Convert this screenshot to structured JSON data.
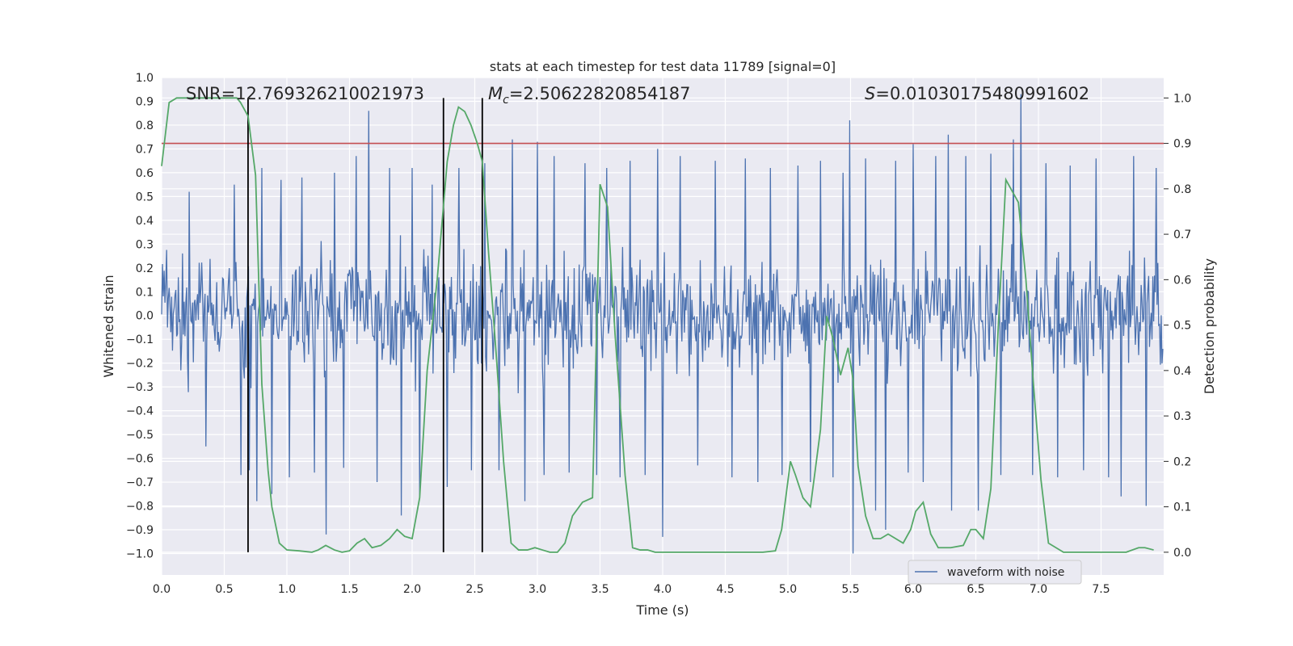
{
  "chart_data": {
    "type": "line",
    "title": "stats at each timestep for test data 11789 [signal=0]",
    "xlabel": "Time (s)",
    "ylabel_left": "Whitened strain",
    "ylabel_right": "Detection probability",
    "xlim": [
      0.0,
      8.0
    ],
    "ylim_left": [
      -1.09,
      1.0
    ],
    "ylim_right": [
      -0.05,
      1.045
    ],
    "x_ticks": [
      "0.0",
      "0.5",
      "1.0",
      "1.5",
      "2.0",
      "2.5",
      "3.0",
      "3.5",
      "4.0",
      "4.5",
      "5.0",
      "5.5",
      "6.0",
      "6.5",
      "7.0",
      "7.5"
    ],
    "y_left_ticks": [
      "1.0",
      "0.9",
      "0.8",
      "0.7",
      "0.6",
      "0.5",
      "0.4",
      "0.3",
      "0.2",
      "0.1",
      "0.0",
      "−0.1",
      "−0.2",
      "−0.3",
      "−0.4",
      "−0.5",
      "−0.6",
      "−0.7",
      "−0.8",
      "−0.9",
      "−1.0"
    ],
    "y_right_ticks": [
      "1.0",
      "0.9",
      "0.8",
      "0.7",
      "0.6",
      "0.5",
      "0.4",
      "0.3",
      "0.2",
      "0.1",
      "0.0"
    ],
    "grid": true,
    "annotations": {
      "snr": "SNR=12.769326210021973",
      "mc_symbol": "M",
      "mc_sub": "c",
      "mc_value": "=2.50622820854187",
      "s_symbol": "S",
      "s_value": "=0.01030175480991602"
    },
    "threshold": 0.9,
    "vertical_markers": [
      0.69,
      2.25,
      2.56
    ],
    "legend": {
      "label": "waveform with noise",
      "position": "lower-right"
    },
    "series": [
      {
        "name": "waveform with noise",
        "axis": "left",
        "color": "#4c72b0",
        "style": "noise",
        "sample_count": 1200,
        "seed": 11789,
        "core_amplitude": 0.29,
        "spikes": [
          {
            "x": 0.22,
            "y": 0.52
          },
          {
            "x": 0.35,
            "y": -0.55
          },
          {
            "x": 0.58,
            "y": 0.55
          },
          {
            "x": 0.63,
            "y": -0.67
          },
          {
            "x": 0.7,
            "y": -0.65
          },
          {
            "x": 0.76,
            "y": -0.78
          },
          {
            "x": 0.8,
            "y": 0.62
          },
          {
            "x": 0.88,
            "y": -0.75
          },
          {
            "x": 0.95,
            "y": 0.57
          },
          {
            "x": 1.02,
            "y": -0.68
          },
          {
            "x": 1.12,
            "y": 0.58
          },
          {
            "x": 1.22,
            "y": -0.66
          },
          {
            "x": 1.31,
            "y": -0.92
          },
          {
            "x": 1.38,
            "y": 0.6
          },
          {
            "x": 1.45,
            "y": -0.64
          },
          {
            "x": 1.55,
            "y": 0.67
          },
          {
            "x": 1.65,
            "y": 0.86
          },
          {
            "x": 1.72,
            "y": -0.7
          },
          {
            "x": 1.82,
            "y": 0.62
          },
          {
            "x": 1.91,
            "y": -0.84
          },
          {
            "x": 2.0,
            "y": 0.62
          },
          {
            "x": 2.06,
            "y": -0.77
          },
          {
            "x": 2.16,
            "y": 0.55
          },
          {
            "x": 2.28,
            "y": -0.72
          },
          {
            "x": 2.37,
            "y": 0.62
          },
          {
            "x": 2.47,
            "y": -0.65
          },
          {
            "x": 2.58,
            "y": 0.64
          },
          {
            "x": 2.69,
            "y": -0.65
          },
          {
            "x": 2.8,
            "y": 0.74
          },
          {
            "x": 2.9,
            "y": -0.78
          },
          {
            "x": 3.0,
            "y": 0.73
          },
          {
            "x": 3.05,
            "y": -0.67
          },
          {
            "x": 3.13,
            "y": 0.67
          },
          {
            "x": 3.25,
            "y": -0.66
          },
          {
            "x": 3.38,
            "y": 0.64
          },
          {
            "x": 3.47,
            "y": -0.67
          },
          {
            "x": 3.55,
            "y": 0.62
          },
          {
            "x": 3.66,
            "y": -0.68
          },
          {
            "x": 3.74,
            "y": 0.65
          },
          {
            "x": 3.86,
            "y": -0.67
          },
          {
            "x": 3.96,
            "y": 0.7
          },
          {
            "x": 4.0,
            "y": -0.93
          },
          {
            "x": 4.14,
            "y": 0.67
          },
          {
            "x": 4.28,
            "y": -0.63
          },
          {
            "x": 4.42,
            "y": 0.65
          },
          {
            "x": 4.55,
            "y": -0.68
          },
          {
            "x": 4.66,
            "y": 0.66
          },
          {
            "x": 4.76,
            "y": -0.7
          },
          {
            "x": 4.86,
            "y": 0.62
          },
          {
            "x": 4.95,
            "y": -0.67
          },
          {
            "x": 5.08,
            "y": 0.63
          },
          {
            "x": 5.18,
            "y": -0.7
          },
          {
            "x": 5.26,
            "y": 0.65
          },
          {
            "x": 5.36,
            "y": -0.68
          },
          {
            "x": 5.44,
            "y": 0.6
          },
          {
            "x": 5.49,
            "y": 0.82
          },
          {
            "x": 5.52,
            "y": -1.0
          },
          {
            "x": 5.62,
            "y": 0.66
          },
          {
            "x": 5.7,
            "y": -0.82
          },
          {
            "x": 5.78,
            "y": -0.9
          },
          {
            "x": 5.86,
            "y": 0.65
          },
          {
            "x": 5.96,
            "y": -0.66
          },
          {
            "x": 6.0,
            "y": 0.72
          },
          {
            "x": 6.08,
            "y": -0.7
          },
          {
            "x": 6.18,
            "y": 0.67
          },
          {
            "x": 6.28,
            "y": 0.76
          },
          {
            "x": 6.31,
            "y": -0.82
          },
          {
            "x": 6.42,
            "y": 0.67
          },
          {
            "x": 6.52,
            "y": -0.82
          },
          {
            "x": 6.62,
            "y": 0.68
          },
          {
            "x": 6.7,
            "y": -0.67
          },
          {
            "x": 6.8,
            "y": 0.74
          },
          {
            "x": 6.86,
            "y": 0.93
          },
          {
            "x": 6.95,
            "y": -0.67
          },
          {
            "x": 7.06,
            "y": 0.64
          },
          {
            "x": 7.15,
            "y": -0.68
          },
          {
            "x": 7.25,
            "y": 0.63
          },
          {
            "x": 7.36,
            "y": -0.65
          },
          {
            "x": 7.46,
            "y": 0.66
          },
          {
            "x": 7.56,
            "y": -0.68
          },
          {
            "x": 7.66,
            "y": -0.76
          },
          {
            "x": 7.76,
            "y": 0.67
          },
          {
            "x": 7.86,
            "y": -0.8
          },
          {
            "x": 7.94,
            "y": 0.62
          }
        ]
      },
      {
        "name": "detection probability",
        "axis": "right",
        "color": "#55a868",
        "style": "line",
        "x": [
          0.0,
          0.06,
          0.12,
          0.2,
          0.3,
          0.4,
          0.5,
          0.6,
          0.63,
          0.69,
          0.75,
          0.8,
          0.85,
          0.88,
          0.94,
          1.0,
          1.1,
          1.2,
          1.25,
          1.31,
          1.38,
          1.44,
          1.5,
          1.56,
          1.62,
          1.68,
          1.75,
          1.82,
          1.88,
          1.94,
          2.0,
          2.06,
          2.12,
          2.2,
          2.28,
          2.33,
          2.37,
          2.42,
          2.47,
          2.52,
          2.56,
          2.61,
          2.67,
          2.73,
          2.79,
          2.85,
          2.92,
          2.98,
          3.04,
          3.1,
          3.16,
          3.22,
          3.28,
          3.36,
          3.44,
          3.5,
          3.56,
          3.62,
          3.7,
          3.76,
          3.82,
          3.88,
          3.94,
          4.0,
          4.1,
          4.2,
          4.3,
          4.4,
          4.5,
          4.6,
          4.7,
          4.8,
          4.9,
          4.95,
          5.02,
          5.06,
          5.12,
          5.18,
          5.26,
          5.31,
          5.36,
          5.42,
          5.48,
          5.52,
          5.56,
          5.62,
          5.68,
          5.74,
          5.8,
          5.86,
          5.92,
          5.98,
          6.02,
          6.08,
          6.14,
          6.2,
          6.3,
          6.4,
          6.46,
          6.5,
          6.56,
          6.62,
          6.68,
          6.74,
          6.78,
          6.84,
          6.9,
          6.96,
          7.02,
          7.08,
          7.2,
          7.4,
          7.6,
          7.7,
          7.8,
          7.85,
          7.92
        ],
        "y": [
          0.85,
          0.99,
          1.0,
          1.0,
          1.0,
          1.0,
          1.0,
          1.0,
          0.99,
          0.96,
          0.83,
          0.37,
          0.18,
          0.1,
          0.02,
          0.005,
          0.003,
          0.0,
          0.005,
          0.015,
          0.005,
          0.0,
          0.003,
          0.02,
          0.03,
          0.01,
          0.015,
          0.03,
          0.05,
          0.035,
          0.03,
          0.12,
          0.4,
          0.6,
          0.86,
          0.94,
          0.98,
          0.97,
          0.94,
          0.9,
          0.86,
          0.66,
          0.44,
          0.2,
          0.02,
          0.005,
          0.005,
          0.01,
          0.005,
          0.0,
          0.0,
          0.02,
          0.08,
          0.11,
          0.12,
          0.81,
          0.76,
          0.48,
          0.17,
          0.01,
          0.005,
          0.005,
          0.0,
          0.0,
          0.0,
          0.0,
          0.0,
          0.0,
          0.0,
          0.0,
          0.0,
          0.0,
          0.003,
          0.05,
          0.2,
          0.17,
          0.12,
          0.1,
          0.27,
          0.52,
          0.47,
          0.39,
          0.45,
          0.38,
          0.19,
          0.08,
          0.03,
          0.03,
          0.04,
          0.03,
          0.02,
          0.05,
          0.09,
          0.11,
          0.04,
          0.01,
          0.01,
          0.015,
          0.05,
          0.05,
          0.03,
          0.14,
          0.5,
          0.82,
          0.8,
          0.77,
          0.6,
          0.37,
          0.16,
          0.02,
          0.0,
          0.0,
          0.0,
          0.0,
          0.01,
          0.01,
          0.005
        ]
      }
    ]
  }
}
